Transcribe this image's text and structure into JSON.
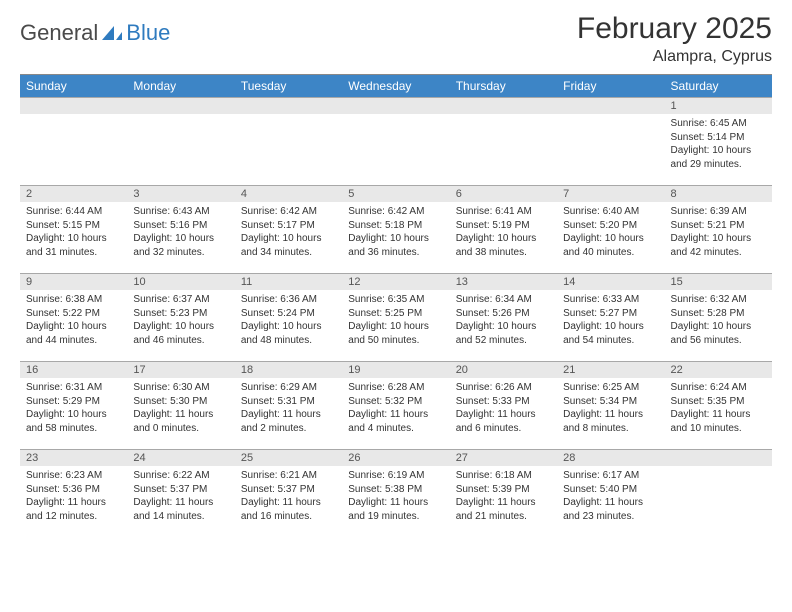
{
  "logo": {
    "general": "General",
    "blue": "Blue"
  },
  "title": "February 2025",
  "location": "Alampra, Cyprus",
  "colors": {
    "header_bg": "#3d85c6",
    "header_text": "#ffffff",
    "daynum_bg": "#e8e8e8",
    "border": "#a8a8a8",
    "text": "#333333",
    "logo_blue": "#2f7bbf"
  },
  "weekdays": [
    "Sunday",
    "Monday",
    "Tuesday",
    "Wednesday",
    "Thursday",
    "Friday",
    "Saturday"
  ],
  "weeks": [
    [
      null,
      null,
      null,
      null,
      null,
      null,
      {
        "n": "1",
        "sunrise": "Sunrise: 6:45 AM",
        "sunset": "Sunset: 5:14 PM",
        "daylight": "Daylight: 10 hours and 29 minutes."
      }
    ],
    [
      {
        "n": "2",
        "sunrise": "Sunrise: 6:44 AM",
        "sunset": "Sunset: 5:15 PM",
        "daylight": "Daylight: 10 hours and 31 minutes."
      },
      {
        "n": "3",
        "sunrise": "Sunrise: 6:43 AM",
        "sunset": "Sunset: 5:16 PM",
        "daylight": "Daylight: 10 hours and 32 minutes."
      },
      {
        "n": "4",
        "sunrise": "Sunrise: 6:42 AM",
        "sunset": "Sunset: 5:17 PM",
        "daylight": "Daylight: 10 hours and 34 minutes."
      },
      {
        "n": "5",
        "sunrise": "Sunrise: 6:42 AM",
        "sunset": "Sunset: 5:18 PM",
        "daylight": "Daylight: 10 hours and 36 minutes."
      },
      {
        "n": "6",
        "sunrise": "Sunrise: 6:41 AM",
        "sunset": "Sunset: 5:19 PM",
        "daylight": "Daylight: 10 hours and 38 minutes."
      },
      {
        "n": "7",
        "sunrise": "Sunrise: 6:40 AM",
        "sunset": "Sunset: 5:20 PM",
        "daylight": "Daylight: 10 hours and 40 minutes."
      },
      {
        "n": "8",
        "sunrise": "Sunrise: 6:39 AM",
        "sunset": "Sunset: 5:21 PM",
        "daylight": "Daylight: 10 hours and 42 minutes."
      }
    ],
    [
      {
        "n": "9",
        "sunrise": "Sunrise: 6:38 AM",
        "sunset": "Sunset: 5:22 PM",
        "daylight": "Daylight: 10 hours and 44 minutes."
      },
      {
        "n": "10",
        "sunrise": "Sunrise: 6:37 AM",
        "sunset": "Sunset: 5:23 PM",
        "daylight": "Daylight: 10 hours and 46 minutes."
      },
      {
        "n": "11",
        "sunrise": "Sunrise: 6:36 AM",
        "sunset": "Sunset: 5:24 PM",
        "daylight": "Daylight: 10 hours and 48 minutes."
      },
      {
        "n": "12",
        "sunrise": "Sunrise: 6:35 AM",
        "sunset": "Sunset: 5:25 PM",
        "daylight": "Daylight: 10 hours and 50 minutes."
      },
      {
        "n": "13",
        "sunrise": "Sunrise: 6:34 AM",
        "sunset": "Sunset: 5:26 PM",
        "daylight": "Daylight: 10 hours and 52 minutes."
      },
      {
        "n": "14",
        "sunrise": "Sunrise: 6:33 AM",
        "sunset": "Sunset: 5:27 PM",
        "daylight": "Daylight: 10 hours and 54 minutes."
      },
      {
        "n": "15",
        "sunrise": "Sunrise: 6:32 AM",
        "sunset": "Sunset: 5:28 PM",
        "daylight": "Daylight: 10 hours and 56 minutes."
      }
    ],
    [
      {
        "n": "16",
        "sunrise": "Sunrise: 6:31 AM",
        "sunset": "Sunset: 5:29 PM",
        "daylight": "Daylight: 10 hours and 58 minutes."
      },
      {
        "n": "17",
        "sunrise": "Sunrise: 6:30 AM",
        "sunset": "Sunset: 5:30 PM",
        "daylight": "Daylight: 11 hours and 0 minutes."
      },
      {
        "n": "18",
        "sunrise": "Sunrise: 6:29 AM",
        "sunset": "Sunset: 5:31 PM",
        "daylight": "Daylight: 11 hours and 2 minutes."
      },
      {
        "n": "19",
        "sunrise": "Sunrise: 6:28 AM",
        "sunset": "Sunset: 5:32 PM",
        "daylight": "Daylight: 11 hours and 4 minutes."
      },
      {
        "n": "20",
        "sunrise": "Sunrise: 6:26 AM",
        "sunset": "Sunset: 5:33 PM",
        "daylight": "Daylight: 11 hours and 6 minutes."
      },
      {
        "n": "21",
        "sunrise": "Sunrise: 6:25 AM",
        "sunset": "Sunset: 5:34 PM",
        "daylight": "Daylight: 11 hours and 8 minutes."
      },
      {
        "n": "22",
        "sunrise": "Sunrise: 6:24 AM",
        "sunset": "Sunset: 5:35 PM",
        "daylight": "Daylight: 11 hours and 10 minutes."
      }
    ],
    [
      {
        "n": "23",
        "sunrise": "Sunrise: 6:23 AM",
        "sunset": "Sunset: 5:36 PM",
        "daylight": "Daylight: 11 hours and 12 minutes."
      },
      {
        "n": "24",
        "sunrise": "Sunrise: 6:22 AM",
        "sunset": "Sunset: 5:37 PM",
        "daylight": "Daylight: 11 hours and 14 minutes."
      },
      {
        "n": "25",
        "sunrise": "Sunrise: 6:21 AM",
        "sunset": "Sunset: 5:37 PM",
        "daylight": "Daylight: 11 hours and 16 minutes."
      },
      {
        "n": "26",
        "sunrise": "Sunrise: 6:19 AM",
        "sunset": "Sunset: 5:38 PM",
        "daylight": "Daylight: 11 hours and 19 minutes."
      },
      {
        "n": "27",
        "sunrise": "Sunrise: 6:18 AM",
        "sunset": "Sunset: 5:39 PM",
        "daylight": "Daylight: 11 hours and 21 minutes."
      },
      {
        "n": "28",
        "sunrise": "Sunrise: 6:17 AM",
        "sunset": "Sunset: 5:40 PM",
        "daylight": "Daylight: 11 hours and 23 minutes."
      },
      null
    ]
  ]
}
